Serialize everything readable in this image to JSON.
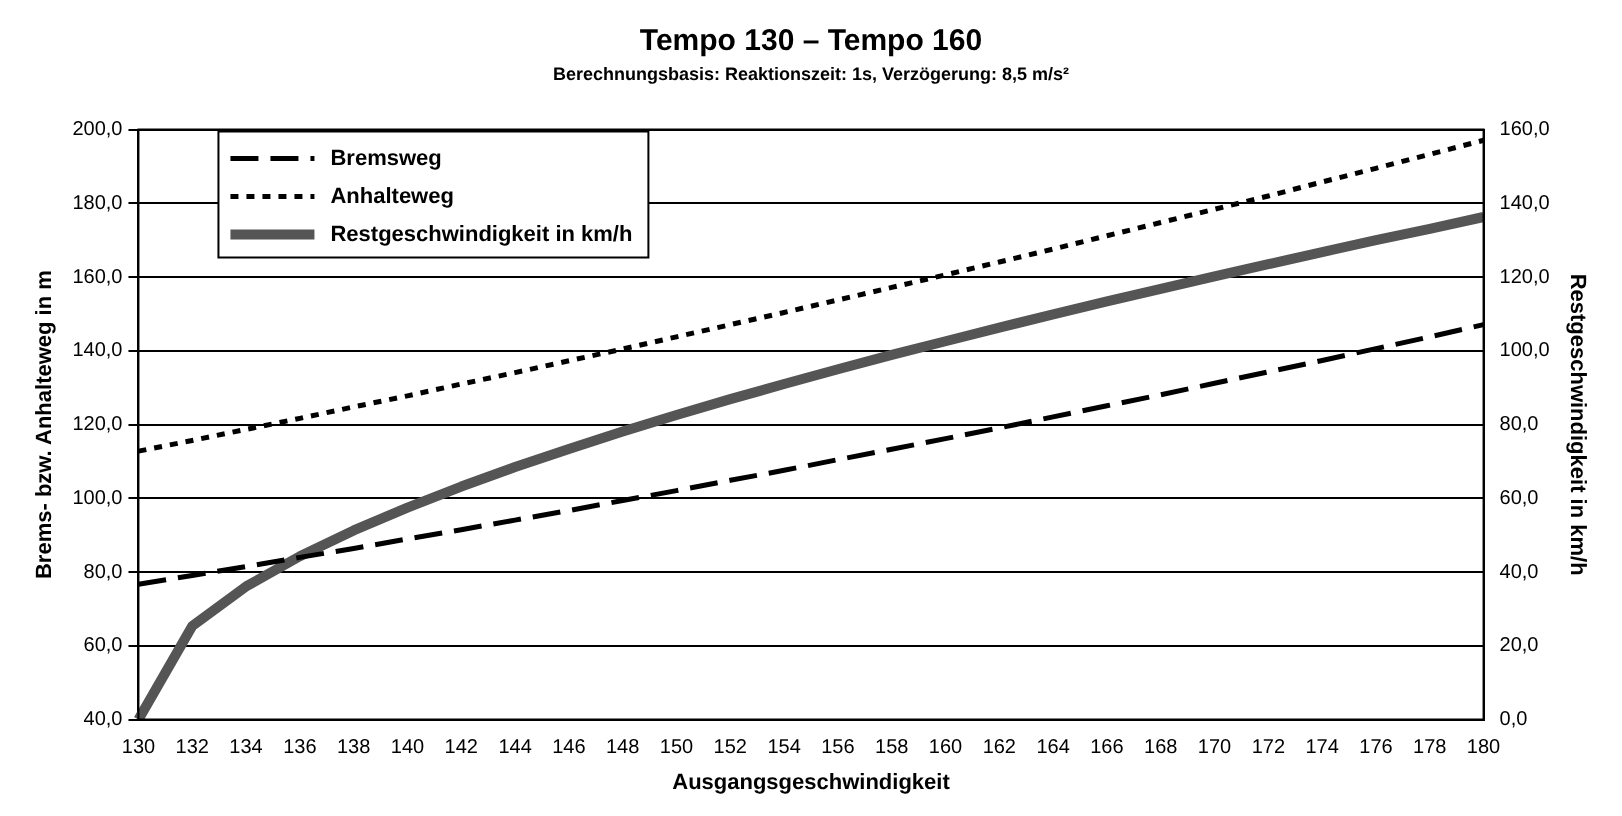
{
  "chart_data": {
    "type": "line",
    "title": "Tempo 130 – Tempo 160",
    "subtitle": "Berechnungsbasis: Reaktionszeit: 1s, Verzögerung: 8,5 m/s²",
    "xlabel": "Ausgangsgeschwindigkeit",
    "ylabel": "Brems- bzw. Anhalteweg in m",
    "y2label": "Restgeschwindigkeit in km/h",
    "categories": [
      "130",
      "132",
      "134",
      "136",
      "138",
      "140",
      "142",
      "144",
      "146",
      "148",
      "150",
      "152",
      "154",
      "156",
      "158",
      "160",
      "162",
      "164",
      "166",
      "168",
      "170",
      "172",
      "174",
      "176",
      "178",
      "180"
    ],
    "series": [
      {
        "name": "Bremsweg",
        "color": "#000000",
        "line_style": "dashed",
        "values": [
          76.7,
          79.1,
          81.5,
          84.0,
          86.4,
          89.0,
          91.5,
          94.1,
          96.7,
          99.4,
          102.1,
          104.9,
          107.6,
          110.5,
          113.3,
          116.2,
          119.1,
          122.1,
          125.1,
          128.1,
          131.2,
          134.3,
          137.4,
          140.6,
          143.8,
          147.1
        ]
      },
      {
        "name": "Anhalteweg",
        "color": "#000000",
        "line_style": "dotted",
        "values": [
          112.8,
          115.7,
          118.7,
          121.7,
          124.8,
          127.8,
          131.0,
          134.1,
          137.3,
          140.5,
          143.8,
          147.1,
          150.4,
          153.8,
          157.2,
          160.6,
          164.1,
          167.6,
          171.2,
          174.8,
          178.4,
          182.0,
          185.8,
          189.5,
          193.3,
          197.1
        ]
      },
      {
        "name": "Restgeschwindigkeit in km/h",
        "color": "#555555",
        "line_style": "solid",
        "axis": "y2",
        "values": [
          0,
          25.4,
          36.1,
          44.3,
          51.3,
          57.5,
          63.2,
          68.5,
          73.4,
          78.1,
          82.6,
          86.9,
          91.0,
          95.0,
          98.9,
          102.6,
          106.3,
          109.9,
          113.4,
          116.8,
          120.2,
          123.5,
          126.8,
          130.0,
          133.1,
          136.3
        ]
      }
    ],
    "ylim": [
      40,
      200
    ],
    "yticks": [
      {
        "value": 40,
        "label": "40,0"
      },
      {
        "value": 60,
        "label": "60,0"
      },
      {
        "value": 80,
        "label": "80,0"
      },
      {
        "value": 100,
        "label": "100,0"
      },
      {
        "value": 120,
        "label": "120,0"
      },
      {
        "value": 140,
        "label": "140,0"
      },
      {
        "value": 160,
        "label": "160,0"
      },
      {
        "value": 180,
        "label": "180,0"
      },
      {
        "value": 200,
        "label": "200,0"
      }
    ],
    "y2lim": [
      0,
      160
    ],
    "y2ticks": [
      {
        "value": 0,
        "label": "0,0"
      },
      {
        "value": 20,
        "label": "20,0"
      },
      {
        "value": 40,
        "label": "40,0"
      },
      {
        "value": 60,
        "label": "60,0"
      },
      {
        "value": 80,
        "label": "80,0"
      },
      {
        "value": 100,
        "label": "100,0"
      },
      {
        "value": 120,
        "label": "120,0"
      },
      {
        "value": 140,
        "label": "140,0"
      },
      {
        "value": 160,
        "label": "160,0"
      }
    ],
    "grid": "y",
    "legend": "top left",
    "marker": "none"
  }
}
